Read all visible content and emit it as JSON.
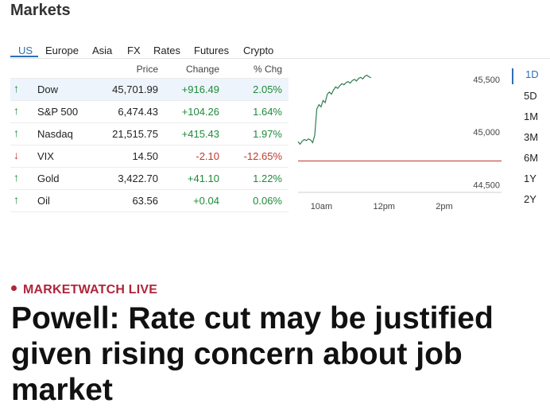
{
  "header": {
    "title": "Markets"
  },
  "tabs": [
    "US",
    "Europe",
    "Asia",
    "FX",
    "Rates",
    "Futures",
    "Crypto"
  ],
  "table": {
    "columns": {
      "price": "Price",
      "change": "Change",
      "pct": "% Chg"
    },
    "rows": [
      {
        "name": "Dow",
        "price": "45,701.99",
        "change": "+916.49",
        "pct": "2.05%",
        "direction": "up",
        "arrow": "↑"
      },
      {
        "name": "S&P 500",
        "price": "6,474.43",
        "change": "+104.26",
        "pct": "1.64%",
        "direction": "up",
        "arrow": "↑"
      },
      {
        "name": "Nasdaq",
        "price": "21,515.75",
        "change": "+415.43",
        "pct": "1.97%",
        "direction": "up",
        "arrow": "↑"
      },
      {
        "name": "VIX",
        "price": "14.50",
        "change": "-2.10",
        "pct": "-12.65%",
        "direction": "down",
        "arrow": "↓"
      },
      {
        "name": "Gold",
        "price": "3,422.70",
        "change": "+41.10",
        "pct": "1.22%",
        "direction": "up",
        "arrow": "↑"
      },
      {
        "name": "Oil",
        "price": "63.56",
        "change": "+0.04",
        "pct": "0.06%",
        "direction": "up",
        "arrow": "↑"
      }
    ]
  },
  "chart_data": {
    "type": "line",
    "x_ticks": [
      "10am",
      "12pm",
      "2pm"
    ],
    "y_ticks": [
      44500,
      45000,
      45500
    ],
    "y_tick_labels": [
      "44,500",
      "45,000",
      "45,500"
    ],
    "ylim": [
      44450,
      45650
    ],
    "x_range_minutes": [
      570,
      960
    ],
    "x_tick_minutes": [
      600,
      720,
      840
    ],
    "previous_close": 44785.5,
    "series": [
      {
        "color": "#2e7d4f",
        "points": [
          [
            570,
            44970
          ],
          [
            574,
            44945
          ],
          [
            578,
            44975
          ],
          [
            582,
            44990
          ],
          [
            586,
            44980
          ],
          [
            590,
            44995
          ],
          [
            594,
            44985
          ],
          [
            598,
            44960
          ],
          [
            602,
            45030
          ],
          [
            606,
            45280
          ],
          [
            610,
            45320
          ],
          [
            614,
            45300
          ],
          [
            618,
            45360
          ],
          [
            622,
            45340
          ],
          [
            626,
            45420
          ],
          [
            630,
            45440
          ],
          [
            634,
            45420
          ],
          [
            638,
            45460
          ],
          [
            642,
            45490
          ],
          [
            646,
            45475
          ],
          [
            650,
            45500
          ],
          [
            654,
            45520
          ],
          [
            658,
            45510
          ],
          [
            662,
            45530
          ],
          [
            666,
            45540
          ],
          [
            670,
            45525
          ],
          [
            674,
            45550
          ],
          [
            678,
            45560
          ],
          [
            682,
            45545
          ],
          [
            686,
            45570
          ],
          [
            690,
            45580
          ],
          [
            694,
            45565
          ],
          [
            698,
            45590
          ],
          [
            702,
            45600
          ],
          [
            706,
            45585
          ],
          [
            710,
            45575
          ]
        ]
      }
    ],
    "colors": {
      "line": "#2e7d4f",
      "previous_close": "#c0392b"
    }
  },
  "ranges": [
    "1D",
    "5D",
    "1M",
    "3M",
    "6M",
    "1Y",
    "2Y"
  ],
  "article": {
    "kicker": "MARKETWATCH LIVE",
    "headline": "Powell: Rate cut may be justified given rising concern about job market"
  }
}
